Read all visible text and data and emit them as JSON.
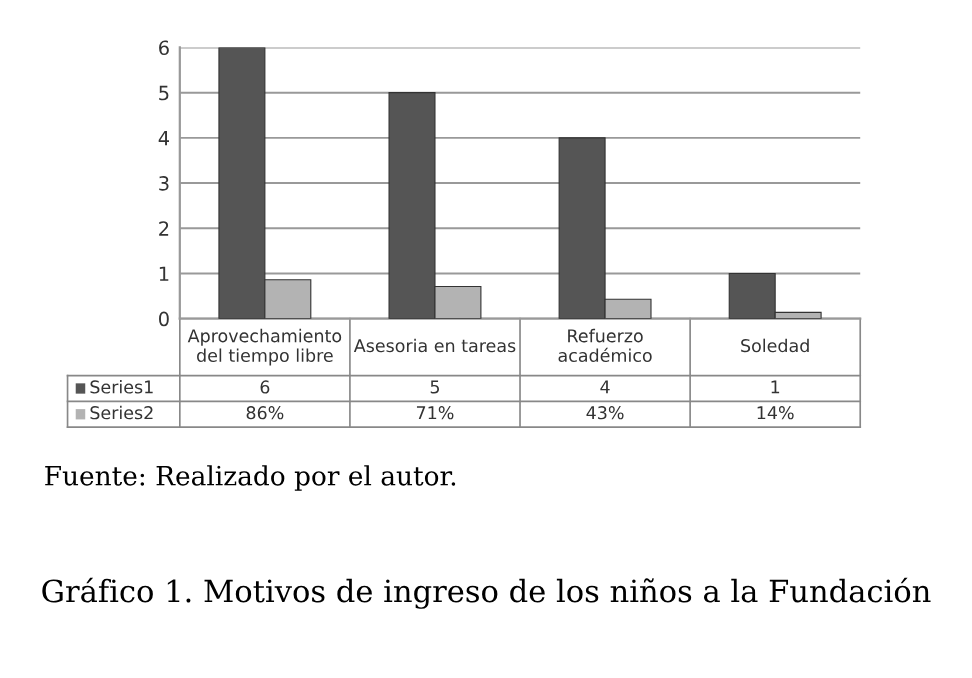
{
  "chart_data": {
    "type": "bar",
    "title": "Gráfico 1. Motivos de ingreso de los niños a la Fundación",
    "categories": [
      "Aprovechamiento\ndel tiempo libre",
      "Asesoria en tareas",
      "Refuerzo\nacadémico",
      "Soledad"
    ],
    "series": [
      {
        "name": "Series1",
        "color": "#555555",
        "values": [
          6,
          5,
          4,
          1
        ],
        "value_labels": [
          "6",
          "5",
          "4",
          "1"
        ]
      },
      {
        "name": "Series2",
        "color": "#b3b3b3",
        "values": [
          0.86,
          0.71,
          0.43,
          0.14
        ],
        "value_labels": [
          "86%",
          "71%",
          "43%",
          "14%"
        ]
      }
    ],
    "ylim": [
      0,
      6
    ],
    "yticks": [
      0,
      1,
      2,
      3,
      4,
      5,
      6
    ],
    "grid": "y",
    "legend": "bottom",
    "annotations": [
      "Fuente: Realizado por el autor."
    ]
  }
}
